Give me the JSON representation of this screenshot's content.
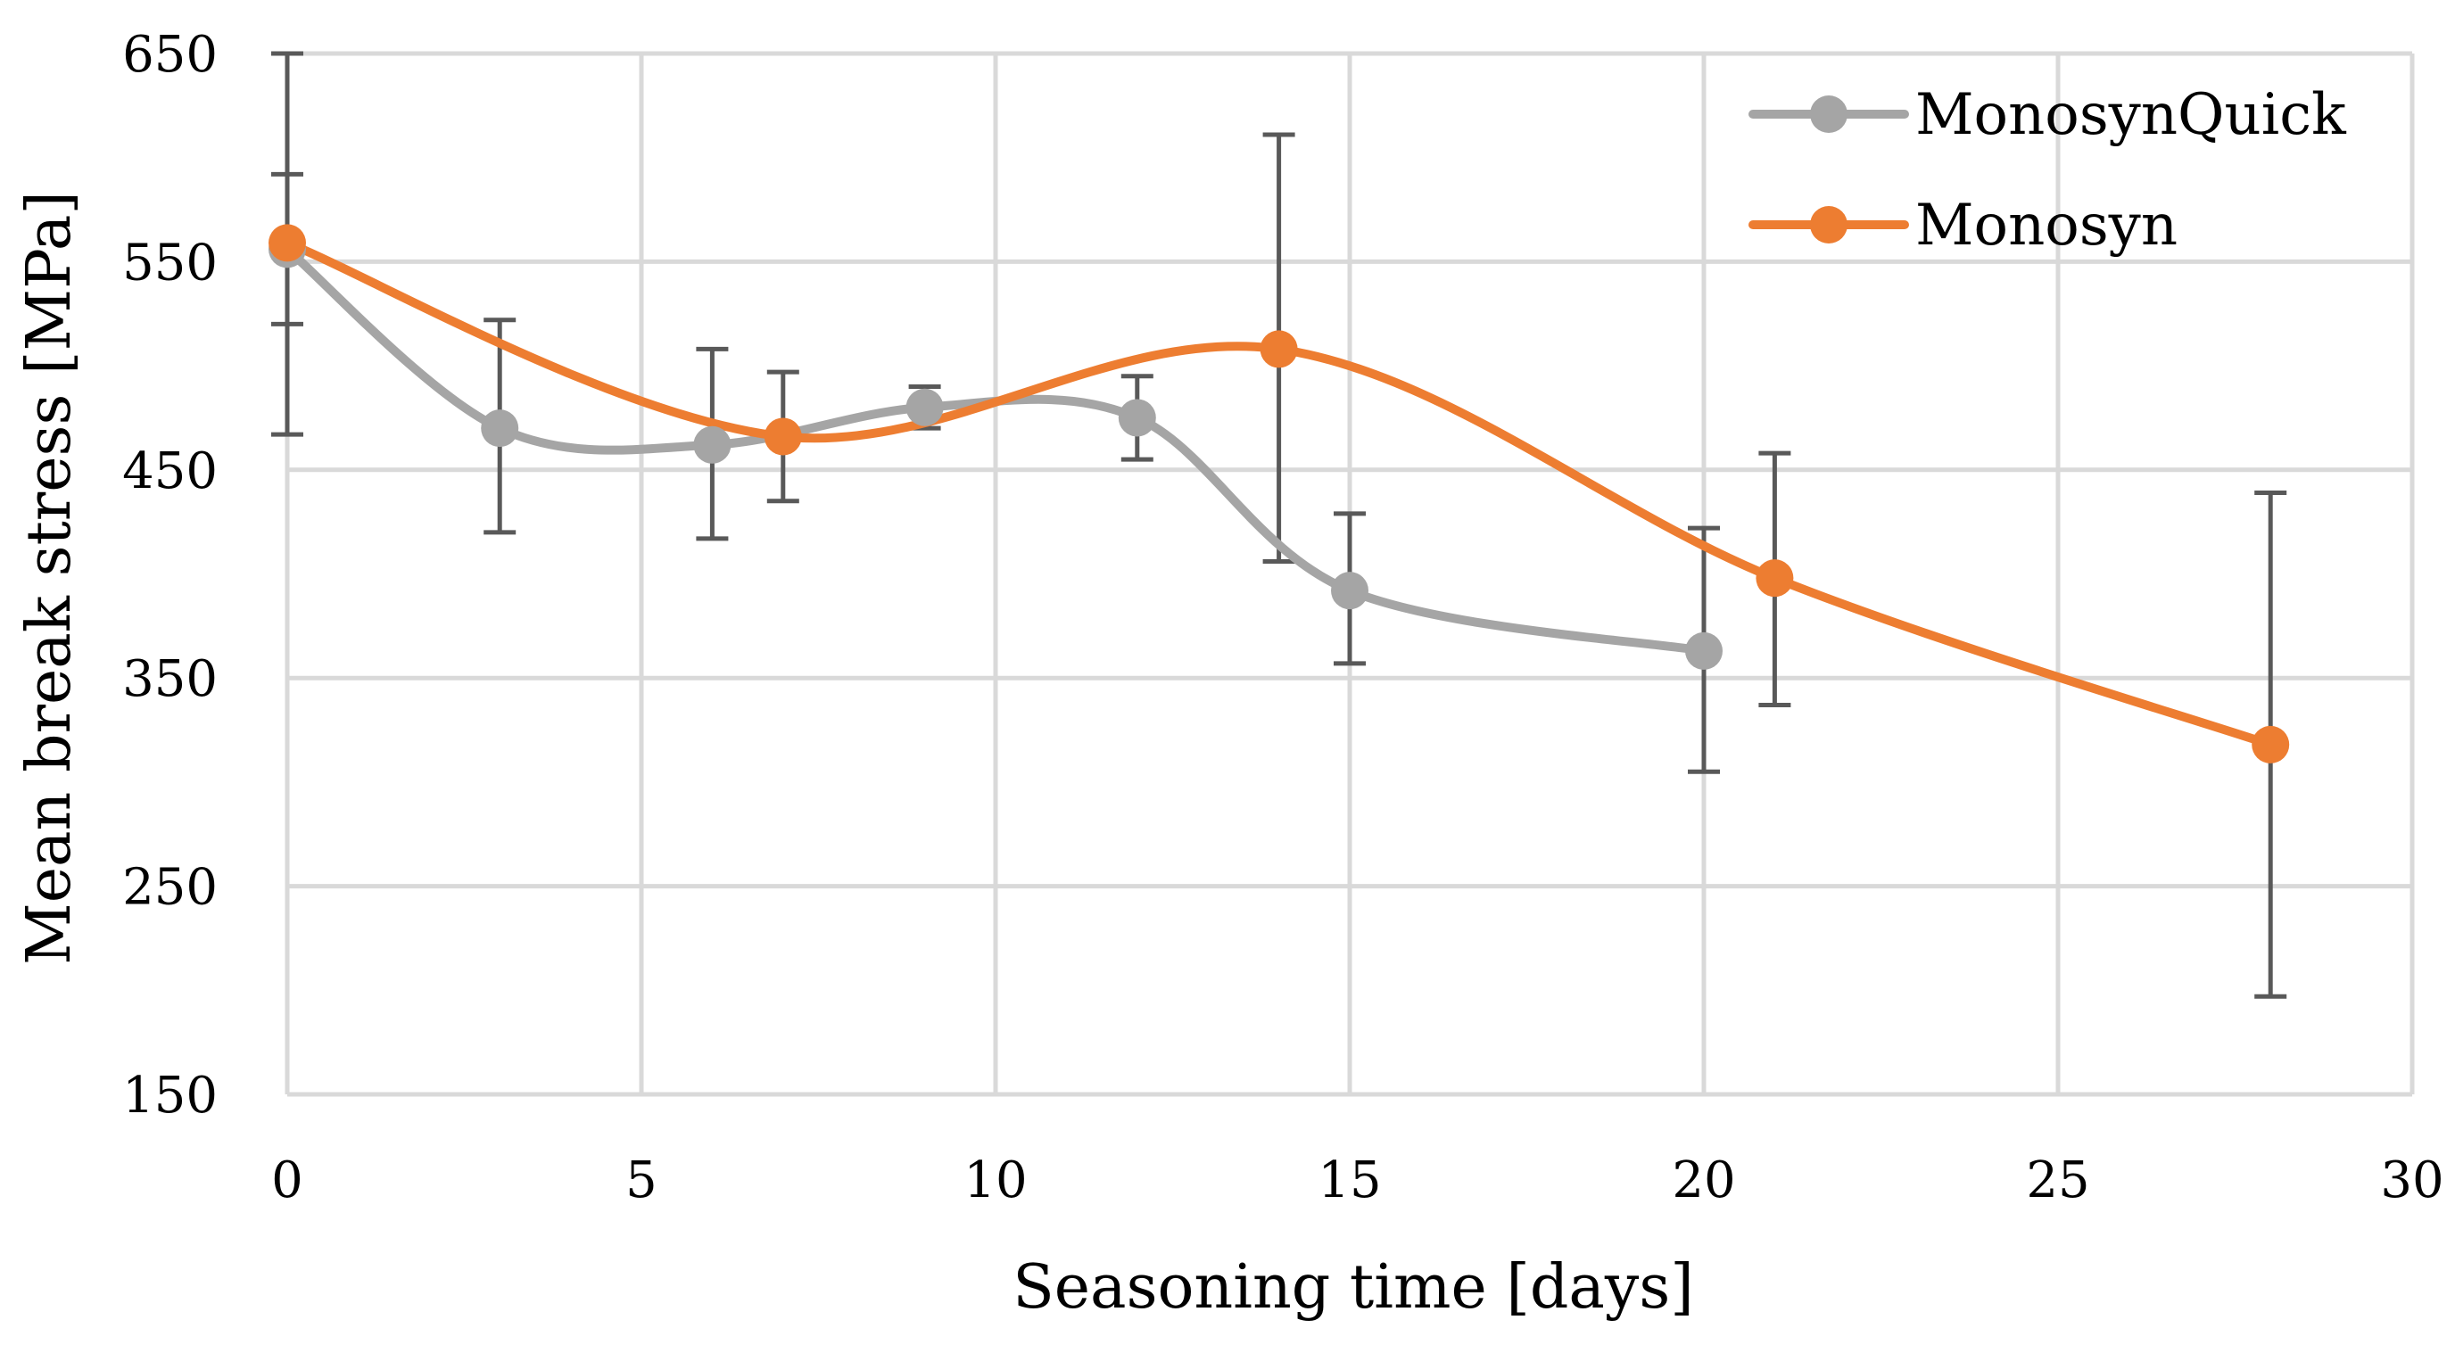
{
  "chart_data": {
    "type": "line",
    "title": "",
    "xlabel": "Seasoning time [days]",
    "ylabel": "Mean break stress [MPa]",
    "xlim": [
      0,
      30
    ],
    "ylim": [
      150,
      650
    ],
    "xticks": [
      0,
      5,
      10,
      15,
      20,
      25,
      30
    ],
    "yticks": [
      150,
      250,
      350,
      450,
      550,
      650
    ],
    "grid": true,
    "legend_position": "top-right",
    "series": [
      {
        "name": "MonosynQuick",
        "color": "#a5a5a5",
        "x": [
          0,
          3,
          6,
          9,
          12,
          15,
          20
        ],
        "y": [
          556,
          470,
          462,
          480,
          475,
          392,
          363
        ],
        "err_lo": [
          36,
          50,
          45,
          10,
          20,
          35,
          58
        ],
        "err_hi": [
          36,
          52,
          46,
          10,
          20,
          37,
          59
        ]
      },
      {
        "name": "Monosyn",
        "color": "#ed7d31",
        "x": [
          0,
          7,
          14,
          21,
          28
        ],
        "y": [
          559,
          466,
          508,
          398,
          318
        ],
        "err_lo": [
          92,
          31,
          102,
          61,
          121
        ],
        "err_hi": [
          91,
          31,
          103,
          60,
          121
        ]
      }
    ],
    "errorbar_color": "#595959"
  }
}
